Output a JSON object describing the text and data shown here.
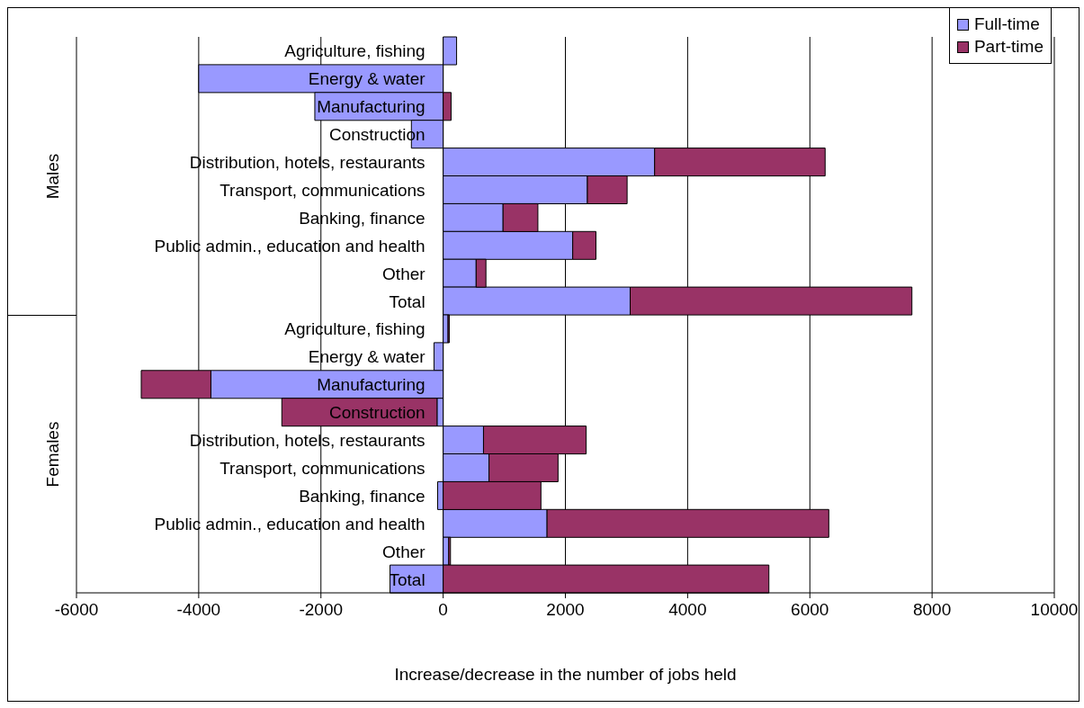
{
  "chart_data": {
    "type": "bar",
    "orientation": "horizontal",
    "stacked": true,
    "categories": [
      "Agriculture, fishing",
      "Energy & water",
      "Manufacturing",
      "Construction",
      "Distribution, hotels, restaurants",
      "Transport, communications",
      "Banking, finance",
      "Public admin., education and health",
      "Other",
      "Total",
      "Agriculture, fishing",
      "Energy & water",
      "Manufacturing",
      "Construction",
      "Distribution, hotels, restaurants",
      "Transport, communications",
      "Banking, finance",
      "Public admin., education and health",
      "Other",
      "Total"
    ],
    "series": [
      {
        "name": "Full-time",
        "color": "#9999ff",
        "values": [
          220,
          -4000,
          -2100,
          -520,
          3460,
          2360,
          980,
          2120,
          540,
          3060,
          80,
          -150,
          -3800,
          -100,
          660,
          750,
          -90,
          1700,
          90,
          -870
        ]
      },
      {
        "name": "Part-time",
        "color": "#993366",
        "values": [
          0,
          0,
          130,
          0,
          2790,
          650,
          570,
          380,
          160,
          4610,
          20,
          0,
          -1140,
          -2540,
          1680,
          1130,
          1600,
          4610,
          30,
          5330
        ]
      }
    ],
    "xlim": [
      -6000,
      10000
    ],
    "xticks": [
      -6000,
      -4000,
      -2000,
      0,
      2000,
      4000,
      6000,
      8000,
      10000
    ],
    "xlabel": "Increase/decrease in the number of jobs held",
    "annotations": [
      "Males",
      "Females"
    ],
    "grid": "x",
    "legend": "top right"
  }
}
